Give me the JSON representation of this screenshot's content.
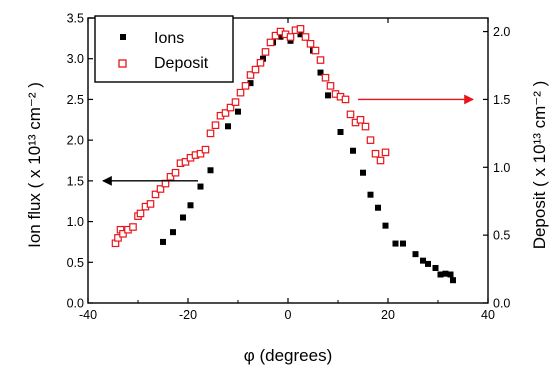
{
  "chart_data": {
    "type": "scatter",
    "xlabel": "φ (degrees)",
    "ylabel_left": "Ion flux ( x 10¹³ cm⁻² )",
    "ylabel_right": "Deposit ( x 10¹³ cm⁻² )",
    "xlim": [
      -40,
      40
    ],
    "ylim_left": [
      0,
      3.5
    ],
    "ylim_right": [
      0,
      2.1
    ],
    "x_ticks": [
      -40,
      -20,
      0,
      20,
      40
    ],
    "y_ticks_left": [
      0.0,
      0.5,
      1.0,
      1.5,
      2.0,
      2.5,
      3.0,
      3.5
    ],
    "y_ticks_right": [
      0.0,
      0.5,
      1.0,
      1.5,
      2.0
    ],
    "legend_position": "top-left",
    "series": [
      {
        "name": "Ions",
        "axis": "left",
        "marker": "filled-square",
        "color": "#000000",
        "points": [
          [
            -25,
            0.75
          ],
          [
            -23,
            0.87
          ],
          [
            -21,
            1.05
          ],
          [
            -19.5,
            1.2
          ],
          [
            -17.5,
            1.43
          ],
          [
            -15.5,
            1.63
          ],
          [
            -12,
            2.17
          ],
          [
            -10,
            2.35
          ],
          [
            -7.5,
            2.7
          ],
          [
            -5,
            3.0
          ],
          [
            -3,
            3.2
          ],
          [
            -1.5,
            3.27
          ],
          [
            0.5,
            3.22
          ],
          [
            2.5,
            3.3
          ],
          [
            5,
            3.1
          ],
          [
            6.5,
            2.83
          ],
          [
            8,
            2.55
          ],
          [
            10.5,
            2.1
          ],
          [
            13,
            1.87
          ],
          [
            15,
            1.6
          ],
          [
            16.5,
            1.33
          ],
          [
            18,
            1.17
          ],
          [
            19.5,
            0.95
          ],
          [
            21.5,
            0.73
          ],
          [
            23,
            0.73
          ],
          [
            25.5,
            0.6
          ],
          [
            27,
            0.52
          ],
          [
            28,
            0.48
          ],
          [
            29.5,
            0.43
          ],
          [
            30.5,
            0.35
          ],
          [
            31.5,
            0.36
          ],
          [
            32.5,
            0.35
          ],
          [
            33,
            0.28
          ]
        ]
      },
      {
        "name": "Deposit",
        "axis": "right",
        "marker": "hollow-square",
        "color": "#e8141c",
        "points": [
          [
            -34.5,
            0.44
          ],
          [
            -34,
            0.48
          ],
          [
            -33.5,
            0.54
          ],
          [
            -33,
            0.51
          ],
          [
            -32,
            0.54
          ],
          [
            -31,
            0.56
          ],
          [
            -30,
            0.64
          ],
          [
            -29.5,
            0.66
          ],
          [
            -28.5,
            0.71
          ],
          [
            -27.5,
            0.73
          ],
          [
            -26.5,
            0.8
          ],
          [
            -25.5,
            0.84
          ],
          [
            -24.5,
            0.88
          ],
          [
            -23.5,
            0.93
          ],
          [
            -22.5,
            0.96
          ],
          [
            -21.5,
            1.03
          ],
          [
            -20.5,
            1.04
          ],
          [
            -19.5,
            1.07
          ],
          [
            -18.5,
            1.09
          ],
          [
            -17.5,
            1.1
          ],
          [
            -16.5,
            1.13
          ],
          [
            -15.5,
            1.25
          ],
          [
            -14.5,
            1.31
          ],
          [
            -13.5,
            1.38
          ],
          [
            -12.5,
            1.4
          ],
          [
            -11.5,
            1.44
          ],
          [
            -10.5,
            1.48
          ],
          [
            -9.5,
            1.55
          ],
          [
            -8.5,
            1.6
          ],
          [
            -7.5,
            1.68
          ],
          [
            -6.5,
            1.72
          ],
          [
            -5.5,
            1.77
          ],
          [
            -4.5,
            1.85
          ],
          [
            -3.5,
            1.92
          ],
          [
            -2.5,
            1.97
          ],
          [
            -1.5,
            2.0
          ],
          [
            -0.5,
            1.98
          ],
          [
            0.5,
            1.96
          ],
          [
            1.5,
            2.01
          ],
          [
            2.5,
            2.02
          ],
          [
            3.5,
            1.96
          ],
          [
            4.5,
            1.91
          ],
          [
            5.5,
            1.86
          ],
          [
            6.5,
            1.79
          ],
          [
            7.5,
            1.66
          ],
          [
            8.5,
            1.6
          ],
          [
            9.5,
            1.54
          ],
          [
            10.5,
            1.52
          ],
          [
            11.5,
            1.5
          ],
          [
            12.5,
            1.39
          ],
          [
            13.5,
            1.33
          ],
          [
            14.5,
            1.35
          ],
          [
            15.5,
            1.3
          ],
          [
            16.5,
            1.2
          ],
          [
            17.5,
            1.1
          ],
          [
            18.5,
            1.05
          ],
          [
            19.5,
            1.11
          ]
        ]
      }
    ],
    "annotations": [
      {
        "type": "arrow",
        "color": "#000000",
        "direction": "left",
        "x_from": -18,
        "x_to": -37,
        "y": 1.5,
        "axis": "left"
      },
      {
        "type": "arrow",
        "color": "#e8141c",
        "direction": "right",
        "x_from": 14,
        "x_to": 37,
        "y": 1.5,
        "axis": "right"
      }
    ]
  }
}
